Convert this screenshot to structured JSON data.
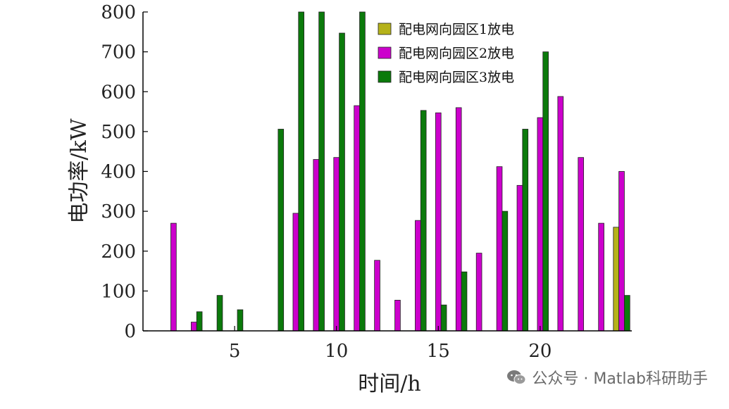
{
  "chart_data": {
    "type": "bar",
    "xlabel": "时间/h",
    "ylabel": "电功率/kW",
    "xlim": [
      0.5,
      24.5
    ],
    "ylim": [
      0,
      800
    ],
    "xticks": [
      5,
      10,
      15,
      20
    ],
    "yticks": [
      0,
      100,
      200,
      300,
      400,
      500,
      600,
      700,
      800
    ],
    "legend_position": "top-right",
    "series": [
      {
        "name": "配电网向园区1放电",
        "color": "#b5b21a",
        "points": [
          [
            24,
            260
          ]
        ]
      },
      {
        "name": "配电网向园区2放电",
        "color": "#cc00cc",
        "points": [
          [
            2,
            270
          ],
          [
            3,
            22
          ],
          [
            8,
            295
          ],
          [
            9,
            430
          ],
          [
            10,
            435
          ],
          [
            11,
            565
          ],
          [
            12,
            177
          ],
          [
            13,
            77
          ],
          [
            14,
            277
          ],
          [
            15,
            547
          ],
          [
            16,
            560
          ],
          [
            17,
            195
          ],
          [
            18,
            412
          ],
          [
            19,
            365
          ],
          [
            20,
            535
          ],
          [
            21,
            588
          ],
          [
            22,
            435
          ],
          [
            23,
            270
          ],
          [
            24,
            400
          ]
        ]
      },
      {
        "name": "配电网向园区3放电",
        "color": "#0b7a0b",
        "points": [
          [
            3,
            48
          ],
          [
            4,
            89
          ],
          [
            5,
            53
          ],
          [
            7,
            506
          ],
          [
            8,
            800
          ],
          [
            9,
            800
          ],
          [
            10,
            747
          ],
          [
            11,
            800
          ],
          [
            14,
            553
          ],
          [
            15,
            65
          ],
          [
            16,
            148
          ],
          [
            18,
            300
          ],
          [
            19,
            506
          ],
          [
            20,
            700
          ],
          [
            24,
            89
          ]
        ]
      }
    ]
  },
  "watermark": {
    "icon": "wechat-icon",
    "text": "公众号 · Matlab科研助手"
  }
}
